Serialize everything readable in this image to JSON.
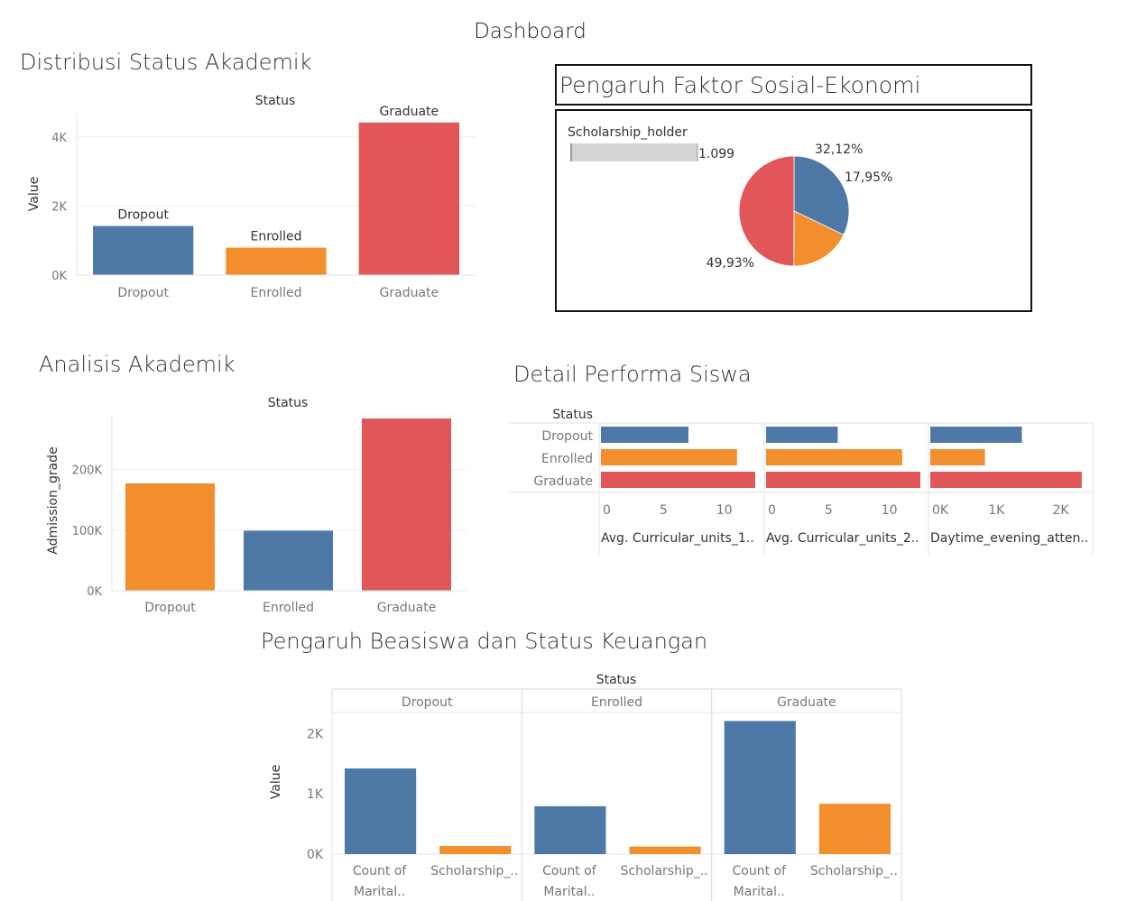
{
  "dashboard": {
    "title": "Dashboard"
  },
  "colors": {
    "blue": "#4e79a7",
    "orange": "#f28e2b",
    "red": "#e15759",
    "grid": "#eeeeee",
    "grey": "#d4d4d4"
  },
  "sections": {
    "distribusi": "Distribusi Status Akademik",
    "sosial": "Pengaruh Faktor Sosial-Ekonomi",
    "analisis": "Analisis Akademik",
    "detail": "Detail Performa Siswa",
    "beasiswa": "Pengaruh Beasiswa dan Status Keuangan"
  },
  "chart_data": [
    {
      "id": "distribusi",
      "type": "bar",
      "title": "Status",
      "ylabel": "Value",
      "categories": [
        "Dropout",
        "Enrolled",
        "Graduate"
      ],
      "values": [
        1421,
        794,
        4418
      ],
      "bar_labels": [
        "Dropout",
        "Enrolled",
        "Graduate"
      ],
      "colors": [
        "#4e79a7",
        "#f28e2b",
        "#e15759"
      ],
      "yticks": [
        {
          "v": 0,
          "t": "0K"
        },
        {
          "v": 2000,
          "t": "2K"
        },
        {
          "v": 4000,
          "t": "4K"
        }
      ],
      "ylim": [
        0,
        4700
      ]
    },
    {
      "id": "sosial",
      "type": "pie",
      "legend_title": "Scholarship_holder",
      "legend_value": "1.099",
      "slices": [
        {
          "value": 32.12,
          "label": "32,12%",
          "color": "#4e79a7"
        },
        {
          "value": 17.95,
          "label": "17,95%",
          "color": "#f28e2b"
        },
        {
          "value": 49.93,
          "label": "49,93%",
          "color": "#e15759"
        }
      ]
    },
    {
      "id": "analisis",
      "type": "bar",
      "title": "Status",
      "ylabel": "Admission_grade",
      "categories": [
        "Dropout",
        "Enrolled",
        "Graduate"
      ],
      "values": [
        177000,
        99000,
        284000
      ],
      "colors": [
        "#f28e2b",
        "#4e79a7",
        "#e15759"
      ],
      "yticks": [
        {
          "v": 0,
          "t": "0K"
        },
        {
          "v": 100000,
          "t": "100K"
        },
        {
          "v": 200000,
          "t": "200K"
        }
      ],
      "ylim": [
        0,
        290000
      ]
    },
    {
      "id": "detail",
      "type": "bar",
      "orientation": "horizontal",
      "row_title": "Status",
      "categories": [
        "Dropout",
        "Enrolled",
        "Graduate"
      ],
      "colors": [
        "#4e79a7",
        "#f28e2b",
        "#e15759"
      ],
      "panels": [
        {
          "label": "Avg. Curricular_units_1..",
          "values": [
            7.2,
            11.2,
            12.7
          ],
          "xlim": [
            0,
            12.7
          ],
          "xticks": [
            {
              "v": 0,
              "t": "0"
            },
            {
              "v": 5,
              "t": "5"
            },
            {
              "v": 10,
              "t": "10"
            }
          ]
        },
        {
          "label": "Avg. Curricular_units_2..",
          "values": [
            5.9,
            11.2,
            12.7
          ],
          "xlim": [
            0,
            12.7
          ],
          "xticks": [
            {
              "v": 0,
              "t": "0"
            },
            {
              "v": 5,
              "t": "5"
            },
            {
              "v": 10,
              "t": "10"
            }
          ]
        },
        {
          "label": "Daytime_evening_atten..",
          "values": [
            1425,
            850,
            2355
          ],
          "xlim": [
            0,
            2400
          ],
          "xticks": [
            {
              "v": 0,
              "t": "0K"
            },
            {
              "v": 1000,
              "t": "1K"
            },
            {
              "v": 2000,
              "t": "2K"
            }
          ]
        }
      ]
    },
    {
      "id": "beasiswa",
      "type": "bar",
      "title": "Status",
      "ylabel": "Value",
      "groups": [
        "Dropout",
        "Enrolled",
        "Graduate"
      ],
      "measures": [
        {
          "l1": "Count of",
          "l2": "Marital.."
        },
        {
          "l1": "Scholarship_..",
          "l2": ""
        }
      ],
      "colors": [
        "#4e79a7",
        "#f28e2b"
      ],
      "values": [
        [
          1421,
          134
        ],
        [
          794,
          126
        ],
        [
          2209,
          835
        ]
      ],
      "yticks": [
        {
          "v": 0,
          "t": "0K"
        },
        {
          "v": 1000,
          "t": "1K"
        },
        {
          "v": 2000,
          "t": "2K"
        }
      ],
      "ylim": [
        0,
        2350
      ]
    }
  ]
}
